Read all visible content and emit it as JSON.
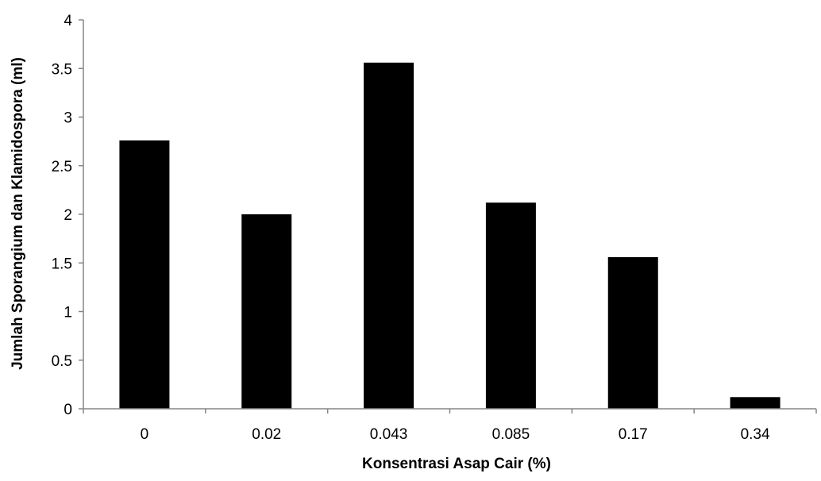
{
  "chart_data": {
    "type": "bar",
    "categories": [
      "0",
      "0.02",
      "0.043",
      "0.085",
      "0.17",
      "0.34"
    ],
    "values": [
      2.76,
      2.0,
      3.56,
      2.12,
      1.56,
      0.12
    ],
    "title": "",
    "xlabel": "Konsentrasi Asap Cair (%)",
    "ylabel": "Jumlah Sporangium dan Klamidospora (ml)",
    "ylim": [
      0,
      4
    ],
    "yticks": [
      "0",
      "0.5",
      "1",
      "1.5",
      "2",
      "2.5",
      "3",
      "3.5",
      "4"
    ],
    "grid": false,
    "legend": "none",
    "bar_color": "#000000",
    "axis_color": "#868686"
  }
}
